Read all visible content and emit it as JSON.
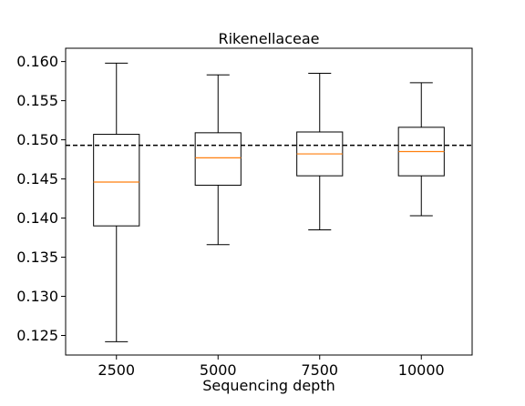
{
  "chart_data": {
    "type": "box",
    "title": "Rikenellaceae",
    "xlabel": "Sequencing depth",
    "ylabel": "",
    "categories": [
      "2500",
      "5000",
      "7500",
      "10000"
    ],
    "ylim": [
      0.1225,
      0.1617
    ],
    "yticks": [
      0.125,
      0.13,
      0.135,
      0.14,
      0.145,
      0.15,
      0.155,
      0.16
    ],
    "ytick_labels": [
      "0.125",
      "0.130",
      "0.135",
      "0.140",
      "0.145",
      "0.150",
      "0.155",
      "0.160"
    ],
    "boxes": [
      {
        "category": "2500",
        "whisker_low": 0.1242,
        "q1": 0.139,
        "median": 0.1446,
        "q3": 0.1507,
        "whisker_high": 0.1598
      },
      {
        "category": "5000",
        "whisker_low": 0.1366,
        "q1": 0.1442,
        "median": 0.1477,
        "q3": 0.1509,
        "whisker_high": 0.1583
      },
      {
        "category": "7500",
        "whisker_low": 0.1385,
        "q1": 0.1454,
        "median": 0.1482,
        "q3": 0.151,
        "whisker_high": 0.1585
      },
      {
        "category": "10000",
        "whisker_low": 0.1403,
        "q1": 0.1454,
        "median": 0.1485,
        "q3": 0.1516,
        "whisker_high": 0.1573
      }
    ],
    "reference_line": {
      "y": 0.1493,
      "style": "dashed"
    },
    "grid": false,
    "colors": {
      "box": "#000000",
      "median": "#ff7f0e",
      "reference": "#000000"
    }
  }
}
